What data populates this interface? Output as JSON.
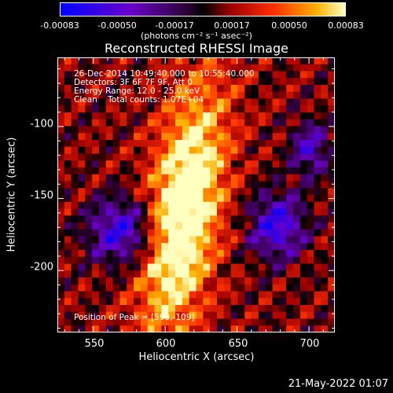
{
  "colorbar": {
    "ticks": [
      "-0.00083",
      "-0.00050",
      "-0.00017",
      "0.00017",
      "0.00050",
      "0.00083"
    ],
    "units": "(photons cm⁻² s⁻¹ asec⁻²)"
  },
  "chart_data": {
    "type": "heatmap",
    "title": "Reconstructed RHESSI Image",
    "xlabel": "Heliocentric X (arcsec)",
    "ylabel": "Heliocentric Y (arcsec)",
    "xlim": [
      525,
      718
    ],
    "ylim": [
      -243,
      -52
    ],
    "x_ticks": [
      "550",
      "600",
      "650",
      "700"
    ],
    "y_ticks": [
      "-100",
      "-150",
      "-200"
    ],
    "color_range": [
      -0.00083,
      0.00083
    ],
    "peak_position": [
      590,
      -109
    ],
    "annotations": {
      "time": "26-Dec-2014 10:49:40.000 to 10:55:40.000",
      "detectors": "Detectors: 3F 6F 7F 9F, Att 0",
      "energy": "Energy Range: 12.0 - 25.0 keV",
      "clean": "Clean    Total counts: 1.07E+04",
      "peak": "Position of Peak = [590,-109]"
    }
  },
  "footer": {
    "date": "21-May-2022 01:07"
  }
}
